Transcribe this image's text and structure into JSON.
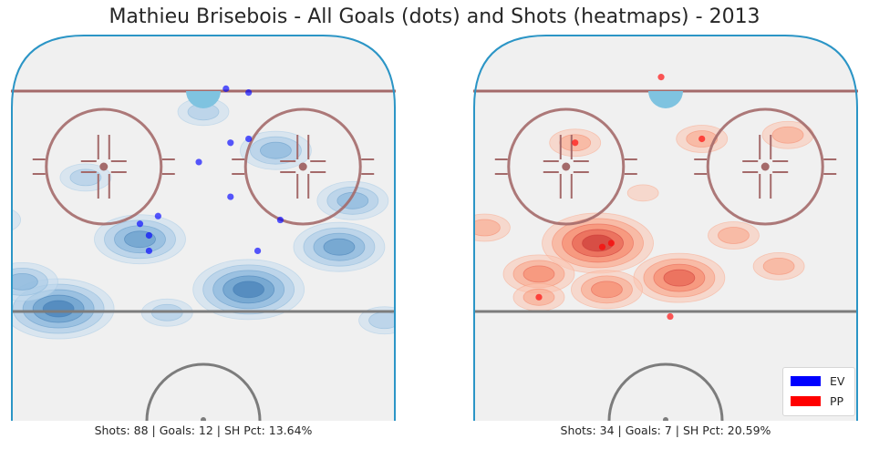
{
  "title": "Mathieu Brisebois - All Goals (dots) and Shots (heatmaps) - 2013",
  "colors": {
    "ev": "#0000ff",
    "pp": "#ff0000",
    "ice": "#f0f0f0",
    "boards": "#2b95c6",
    "redline": "#a46a6a",
    "blueline": "#7c7c7c",
    "crease": "#7fc3e0"
  },
  "legend": [
    {
      "label": "EV",
      "color": "#0000ff"
    },
    {
      "label": "PP",
      "color": "#ff0000"
    }
  ],
  "chart_data": [
    {
      "type": "scatter",
      "name_text": "EV",
      "caption": "Shots: 88 | Goals: 12 | SH Pct: 13.64%",
      "heatmap_color": "blue",
      "goals": [
        {
          "x": 5,
          "y": 86
        },
        {
          "x": 10,
          "y": 85
        },
        {
          "x": 6,
          "y": 72
        },
        {
          "x": 10,
          "y": 73
        },
        {
          "x": -1,
          "y": 67
        },
        {
          "x": 6,
          "y": 58
        },
        {
          "x": -10,
          "y": 53
        },
        {
          "x": -14,
          "y": 51
        },
        {
          "x": -12,
          "y": 48
        },
        {
          "x": -12,
          "y": 44
        },
        {
          "x": 17,
          "y": 52
        },
        {
          "x": 12,
          "y": 44
        }
      ],
      "shot_clusters": [
        {
          "x": 10,
          "y": 34,
          "level": 5
        },
        {
          "x": -32,
          "y": 29,
          "level": 5
        },
        {
          "x": -14,
          "y": 47,
          "level": 4
        },
        {
          "x": 30,
          "y": 45,
          "level": 4
        },
        {
          "x": -40,
          "y": 36,
          "level": 3
        },
        {
          "x": 33,
          "y": 57,
          "level": 3
        },
        {
          "x": 16,
          "y": 70,
          "level": 3
        },
        {
          "x": -26,
          "y": 63,
          "level": 2
        },
        {
          "x": -46,
          "y": 52,
          "level": 2
        },
        {
          "x": 40,
          "y": 26,
          "level": 2
        },
        {
          "x": -8,
          "y": 28,
          "level": 2
        },
        {
          "x": 0,
          "y": 80,
          "level": 2
        }
      ]
    },
    {
      "type": "scatter",
      "name_text": "PP",
      "caption": "Shots: 34 | Goals: 7 | SH Pct: 20.59%",
      "heatmap_color": "red",
      "goals": [
        {
          "x": -1,
          "y": 89
        },
        {
          "x": 8,
          "y": 73
        },
        {
          "x": -20,
          "y": 72
        },
        {
          "x": -12,
          "y": 46
        },
        {
          "x": -14,
          "y": 45
        },
        {
          "x": -28,
          "y": 32
        },
        {
          "x": 1,
          "y": 27
        }
      ],
      "shot_clusters": [
        {
          "x": -15,
          "y": 46,
          "level": 5
        },
        {
          "x": 3,
          "y": 37,
          "level": 4
        },
        {
          "x": -28,
          "y": 38,
          "level": 3
        },
        {
          "x": -13,
          "y": 34,
          "level": 3
        },
        {
          "x": -28,
          "y": 32,
          "level": 2
        },
        {
          "x": -40,
          "y": 50,
          "level": 2
        },
        {
          "x": -20,
          "y": 72,
          "level": 2
        },
        {
          "x": 8,
          "y": 73,
          "level": 2
        },
        {
          "x": 15,
          "y": 48,
          "level": 2
        },
        {
          "x": 27,
          "y": 74,
          "level": 2
        },
        {
          "x": 25,
          "y": 40,
          "level": 2
        },
        {
          "x": -5,
          "y": 59,
          "level": 1
        }
      ]
    }
  ]
}
